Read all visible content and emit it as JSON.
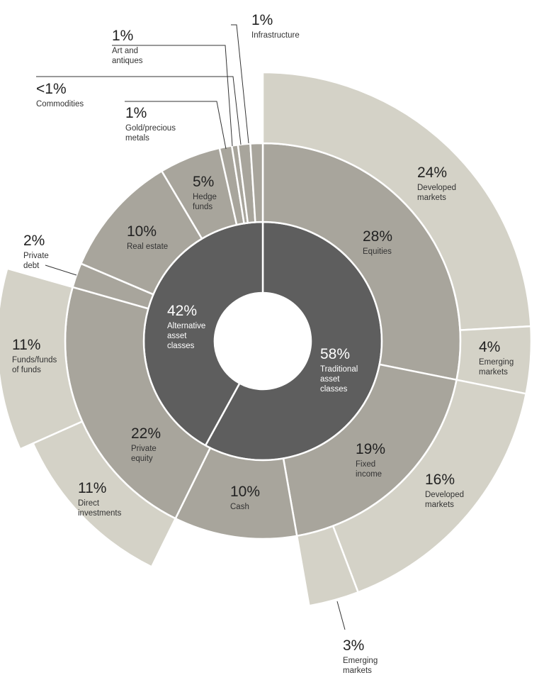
{
  "chart_data": {
    "type": "sunburst",
    "colors": {
      "inner": "#5e5e5e",
      "middle": "#a8a59c",
      "outer": "#d4d2c7",
      "stroke": "#ffffff",
      "leader": "#333333"
    },
    "inner_ring": [
      {
        "key": "traditional",
        "value": 58,
        "pct": "58%",
        "label": [
          "Traditional",
          "asset",
          "classes"
        ]
      },
      {
        "key": "alternative",
        "value": 42,
        "pct": "42%",
        "label": [
          "Alternative",
          "asset",
          "classes"
        ]
      }
    ],
    "middle_ring": [
      {
        "key": "equities",
        "value": 28,
        "pct": "28%",
        "label": [
          "Equities"
        ]
      },
      {
        "key": "fixed-income",
        "value": 19,
        "pct": "19%",
        "label": [
          "Fixed",
          "income"
        ]
      },
      {
        "key": "cash",
        "value": 10,
        "pct": "10%",
        "label": [
          "Cash"
        ]
      },
      {
        "key": "private-equity",
        "value": 22,
        "pct": "22%",
        "label": [
          "Private",
          "equity"
        ]
      },
      {
        "key": "private-debt",
        "value": 2,
        "pct": "2%",
        "label": [
          "Private",
          "debt"
        ]
      },
      {
        "key": "real-estate",
        "value": 10,
        "pct": "10%",
        "label": [
          "Real estate"
        ]
      },
      {
        "key": "hedge-funds",
        "value": 5,
        "pct": "5%",
        "label": [
          "Hedge",
          "funds"
        ]
      },
      {
        "key": "gold-precious-metals",
        "value": 1,
        "pct": "1%",
        "label": [
          "Gold/precious",
          "metals"
        ]
      },
      {
        "key": "commodities",
        "value": 0.5,
        "pct": "<1%",
        "label": [
          "Commodities"
        ]
      },
      {
        "key": "art-and-antiques",
        "value": 1,
        "pct": "1%",
        "label": [
          "Art and",
          "antiques"
        ]
      },
      {
        "key": "infrastructure",
        "value": 1,
        "pct": "1%",
        "label": [
          "Infrastructure"
        ]
      }
    ],
    "outer_ring": [
      {
        "key": "equities-developed",
        "parent": "equities",
        "value": 24,
        "pct": "24%",
        "label": [
          "Developed",
          "markets"
        ]
      },
      {
        "key": "equities-emerging",
        "parent": "equities",
        "value": 4,
        "pct": "4%",
        "label": [
          "Emerging",
          "markets"
        ]
      },
      {
        "key": "fixed-income-developed",
        "parent": "fixed-income",
        "value": 16,
        "pct": "16%",
        "label": [
          "Developed",
          "markets"
        ]
      },
      {
        "key": "fixed-income-emerging",
        "parent": "fixed-income",
        "value": 3,
        "pct": "3%",
        "label": [
          "Emerging",
          "markets"
        ]
      },
      {
        "key": "direct-investments",
        "parent": "private-equity",
        "value": 11,
        "pct": "11%",
        "label": [
          "Direct",
          "investments"
        ]
      },
      {
        "key": "funds-of-funds",
        "parent": "private-equity",
        "value": 11,
        "pct": "11%",
        "label": [
          "Funds/funds",
          "of funds"
        ]
      }
    ]
  }
}
